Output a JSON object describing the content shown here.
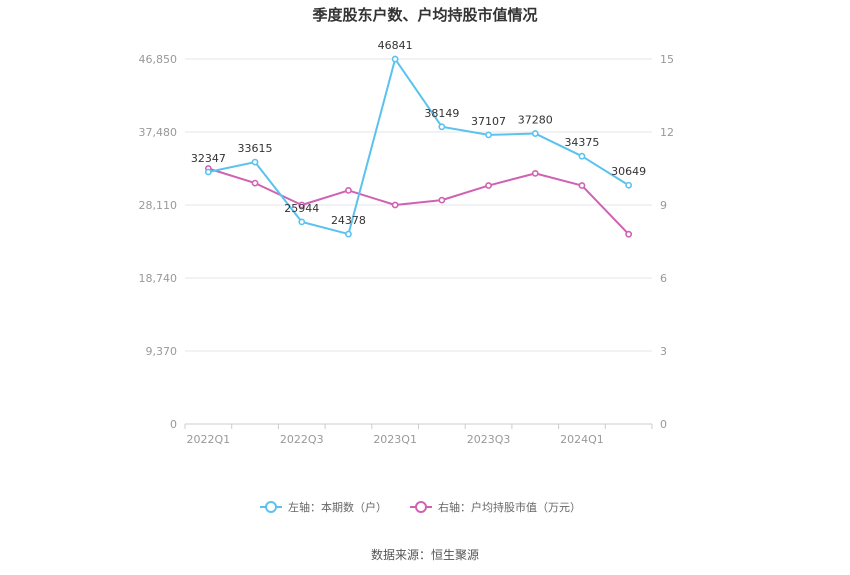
{
  "chart_data": {
    "type": "line",
    "title": "季度股东户数、户均持股市值情况",
    "x": [
      "2022Q1",
      "2022Q2",
      "2022Q3",
      "2022Q4",
      "2023Q1",
      "2023Q2",
      "2023Q3",
      "2023Q4",
      "2024Q1",
      "2024Q2"
    ],
    "x_tick_labels": [
      "2022Q1",
      "",
      "2022Q3",
      "",
      "2023Q1",
      "",
      "2023Q3",
      "",
      "2024Q1",
      ""
    ],
    "left_axis": {
      "range": [
        0,
        46850
      ],
      "tick_labels": [
        "0",
        "9,370",
        "18,740",
        "28,110",
        "37,480",
        "46,850"
      ]
    },
    "right_axis": {
      "range": [
        0,
        15
      ],
      "tick_labels": [
        "0",
        "3",
        "6",
        "9",
        "12",
        "15"
      ]
    },
    "grid": true,
    "legend_position": "bottom",
    "series": [
      {
        "name": "左轴：本期数（户）",
        "axis": "left",
        "color": "#5bc2f0",
        "values": [
          32347,
          33615,
          25944,
          24378,
          46841,
          38149,
          37107,
          37280,
          34375,
          30649
        ],
        "data_labels": [
          "32347",
          "33615",
          "25944",
          "24378",
          "46841",
          "38149",
          "37107",
          "37280",
          "34375",
          "30649"
        ]
      },
      {
        "name": "右轴：户均持股市值（万元）",
        "axis": "right",
        "color": "#d061b3",
        "values": [
          10.5,
          9.9,
          9.0,
          9.6,
          9.0,
          9.2,
          9.8,
          10.3,
          9.8,
          7.8
        ]
      }
    ]
  },
  "source_text": "数据来源：恒生聚源"
}
